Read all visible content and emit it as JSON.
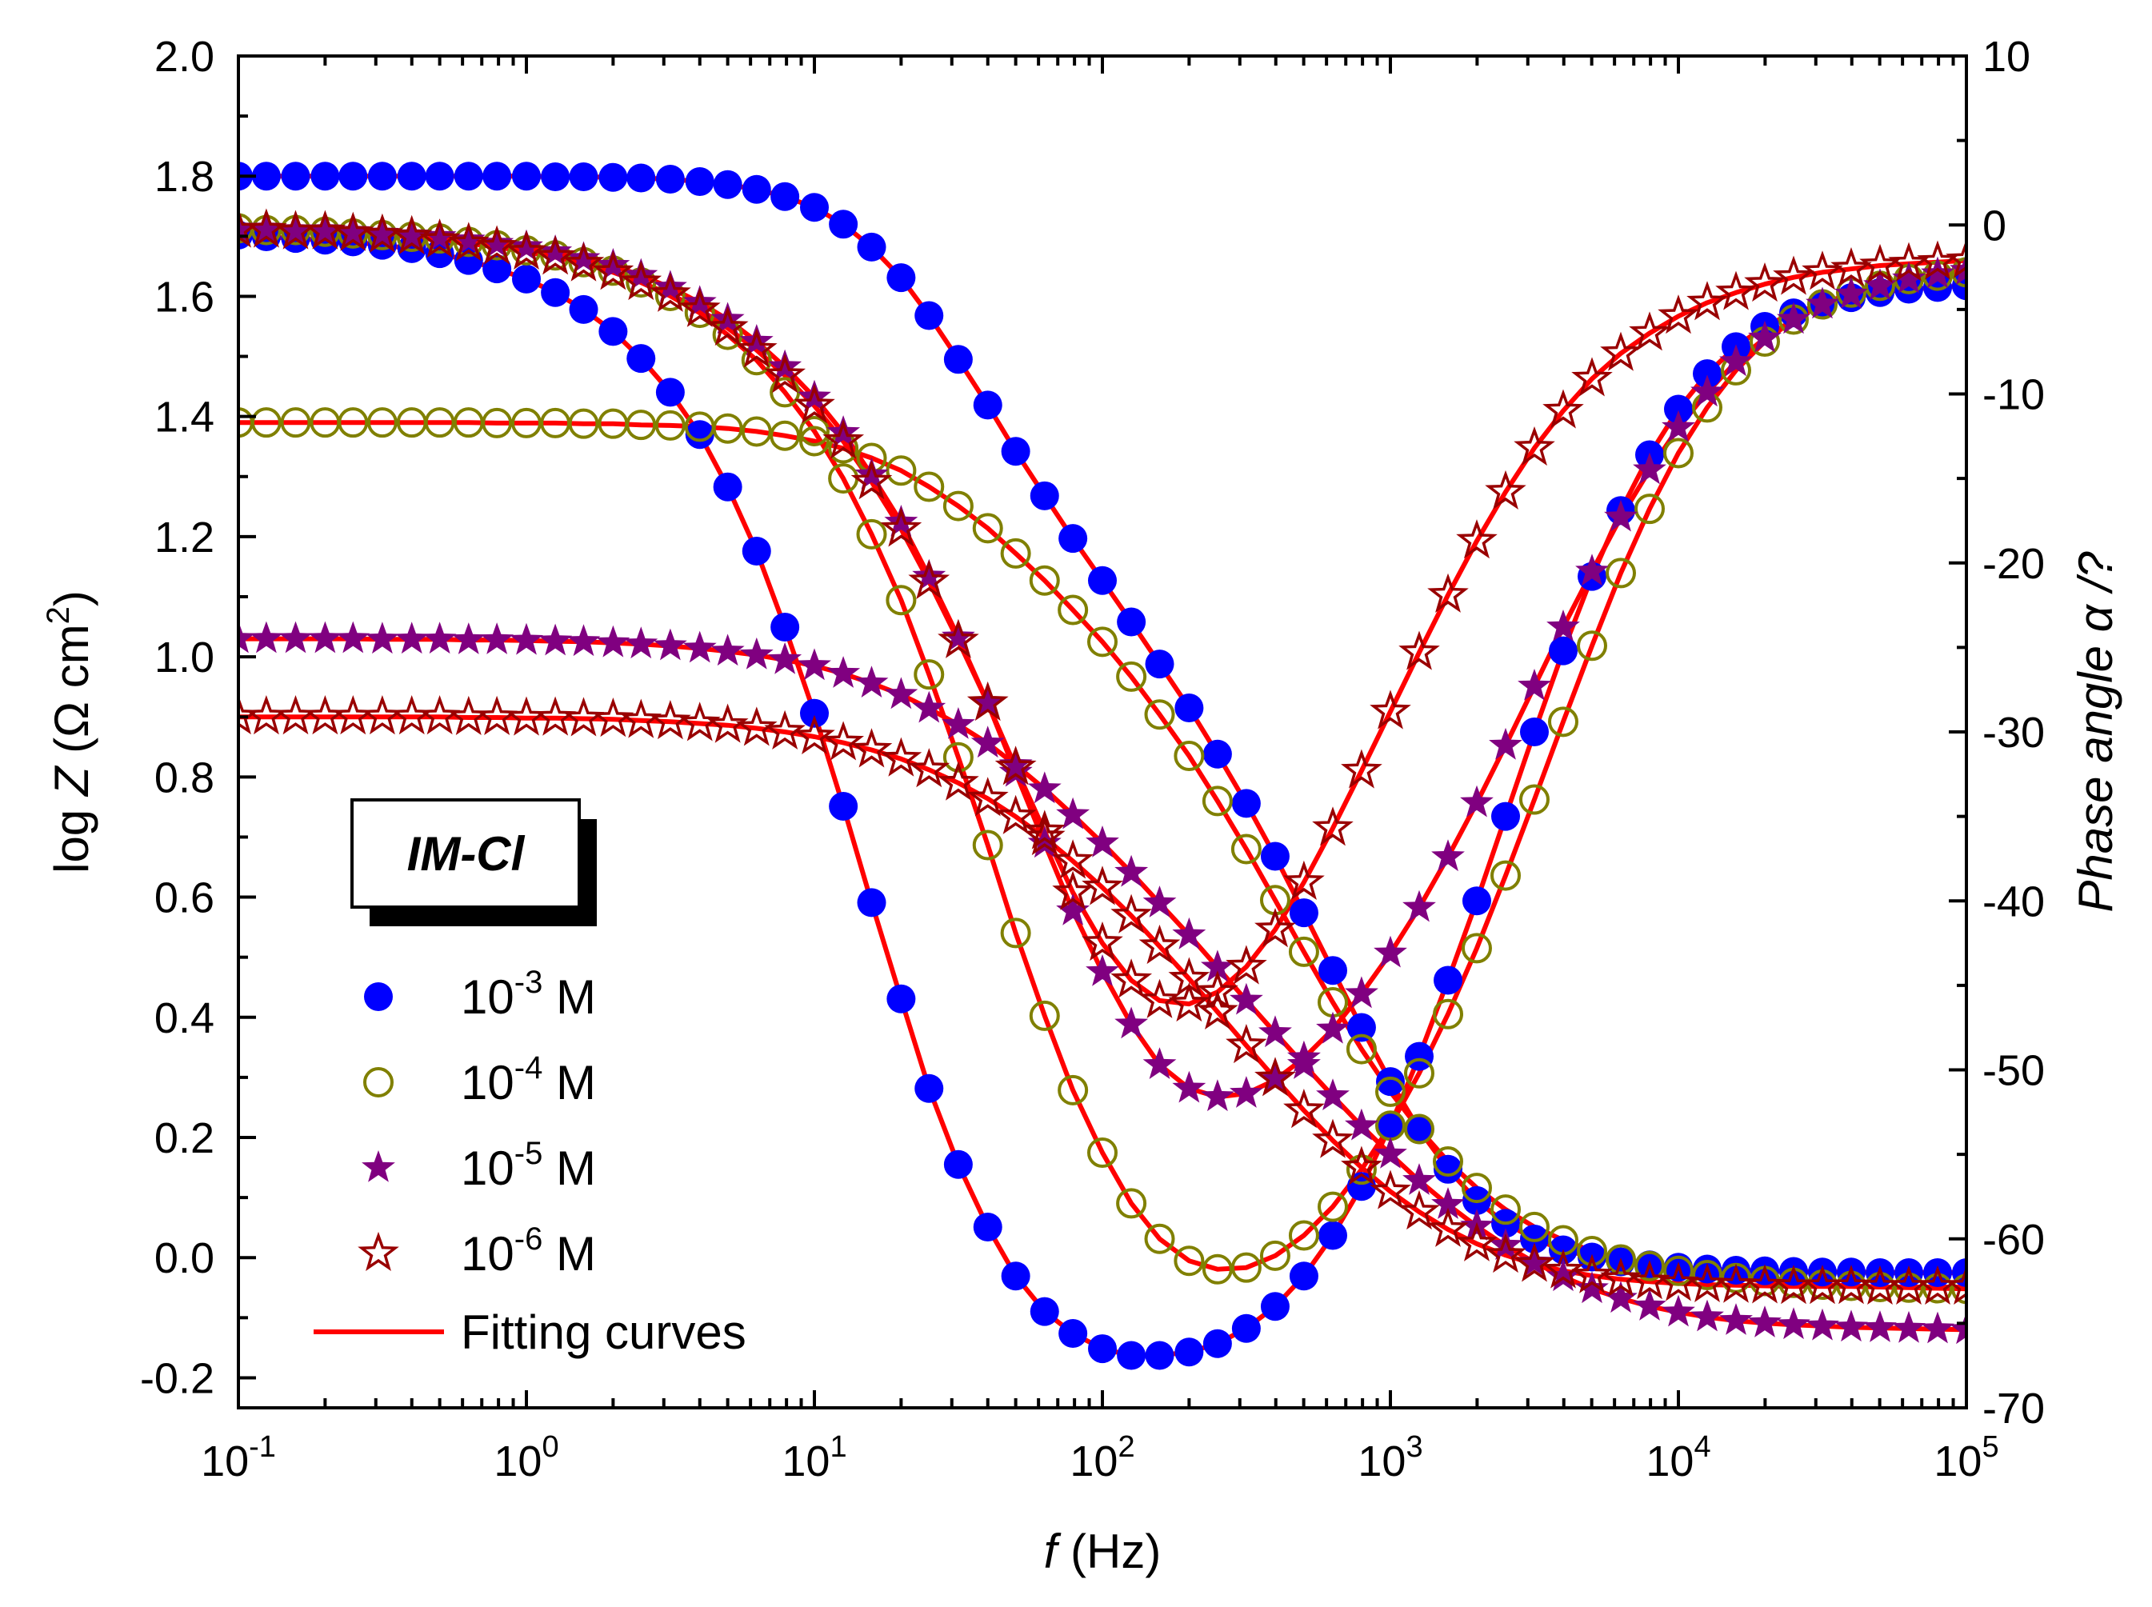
{
  "chart_data": {
    "type": "scatter",
    "x": [
      0.1,
      0.125,
      0.158,
      0.2,
      0.25,
      0.316,
      0.4,
      0.5,
      0.63,
      0.79,
      1.0,
      1.26,
      1.58,
      2.0,
      2.5,
      3.16,
      4.0,
      5.0,
      6.3,
      7.9,
      10,
      12.6,
      15.8,
      20,
      25,
      31.6,
      40,
      50,
      63,
      79,
      100,
      126,
      158,
      200,
      251,
      316,
      398,
      501,
      631,
      794,
      1000,
      1259,
      1585,
      1995,
      2512,
      3162,
      3981,
      5012,
      6310,
      7943,
      10000,
      12589,
      15849,
      19953,
      25119,
      31623,
      39811,
      50119,
      63096,
      79433,
      100000
    ],
    "xlabel_italic": "f",
    "xlabel_rest": " (Hz)",
    "xscale": "log",
    "xlim": [
      0.1,
      100000
    ],
    "x_ticks": [
      {
        "value": 0.1,
        "base": "10",
        "exp": "-1"
      },
      {
        "value": 1,
        "base": "10",
        "exp": "0"
      },
      {
        "value": 10,
        "base": "10",
        "exp": "1"
      },
      {
        "value": 100,
        "base": "10",
        "exp": "2"
      },
      {
        "value": 1000,
        "base": "10",
        "exp": "3"
      },
      {
        "value": 10000,
        "base": "10",
        "exp": "4"
      },
      {
        "value": 100000,
        "base": "10",
        "exp": "5"
      }
    ],
    "ylabel_left_pre": "log ",
    "ylabel_left_italic": "Z",
    "ylabel_left_post": " (Ω cm",
    "ylabel_left_sup": "2",
    "ylabel_left_close": ")",
    "ylim_left": [
      -0.25,
      2.0
    ],
    "y_ticks_left": [
      "-0.2",
      "0.0",
      "0.2",
      "0.4",
      "0.6",
      "0.8",
      "1.0",
      "1.2",
      "1.4",
      "1.6",
      "1.8",
      "2.0"
    ],
    "ylabel_right": "Phase angle α /?",
    "ylim_right": [
      -70,
      10
    ],
    "y_ticks_right": [
      "-70",
      "-60",
      "-50",
      "-40",
      "-30",
      "-20",
      "-10",
      "0",
      "10"
    ],
    "inset_label": "IM-Cl",
    "legend_position": "lower-left",
    "legend": [
      {
        "base": "10",
        "exp": "-3",
        "unit": " M",
        "marker": "filled-circle",
        "color": "#0000ff"
      },
      {
        "base": "10",
        "exp": "-4",
        "unit": " M",
        "marker": "open-circle",
        "color": "#808000"
      },
      {
        "base": "10",
        "exp": "-5",
        "unit": " M",
        "marker": "filled-star",
        "color": "#800080"
      },
      {
        "base": "10",
        "exp": "-6",
        "unit": " M",
        "marker": "open-star",
        "color": "#990000"
      },
      {
        "text": "Fitting curves",
        "marker": "line",
        "color": "#ff0000"
      }
    ],
    "fit_color": "#ff0000",
    "series": [
      {
        "name": "10-3 M logZ",
        "axis": "left",
        "marker": "filled-circle",
        "color": "#0000ff",
        "values": [
          1.8,
          1.8,
          1.8,
          1.8,
          1.8,
          1.8,
          1.8,
          1.8,
          1.8,
          1.8,
          1.8,
          1.799,
          1.799,
          1.798,
          1.797,
          1.795,
          1.791,
          1.786,
          1.778,
          1.766,
          1.748,
          1.72,
          1.682,
          1.631,
          1.568,
          1.495,
          1.419,
          1.342,
          1.268,
          1.197,
          1.127,
          1.058,
          0.988,
          0.915,
          0.838,
          0.756,
          0.668,
          0.574,
          0.478,
          0.383,
          0.293,
          0.213,
          0.147,
          0.095,
          0.057,
          0.031,
          0.013,
          0.001,
          -0.007,
          -0.012,
          -0.016,
          -0.019,
          -0.021,
          -0.022,
          -0.023,
          -0.024,
          -0.024,
          -0.025,
          -0.025,
          -0.025,
          -0.025
        ]
      },
      {
        "name": "10-3 M phase",
        "axis": "right",
        "marker": "filled-circle",
        "color": "#0000ff",
        "values": [
          -0.6,
          -0.7,
          -0.8,
          -0.9,
          -1.0,
          -1.2,
          -1.4,
          -1.7,
          -2.1,
          -2.6,
          -3.2,
          -4.0,
          -5.0,
          -6.3,
          -7.9,
          -9.9,
          -12.4,
          -15.5,
          -19.3,
          -23.8,
          -28.9,
          -34.4,
          -40.1,
          -45.8,
          -51.1,
          -55.6,
          -59.3,
          -62.2,
          -64.3,
          -65.6,
          -66.5,
          -66.9,
          -66.9,
          -66.7,
          -66.2,
          -65.3,
          -64.0,
          -62.2,
          -59.8,
          -56.9,
          -53.3,
          -49.2,
          -44.7,
          -40.0,
          -35.0,
          -30.0,
          -25.2,
          -20.8,
          -16.9,
          -13.6,
          -10.9,
          -8.8,
          -7.2,
          -6.0,
          -5.2,
          -4.7,
          -4.3,
          -4.0,
          -3.8,
          -3.7,
          -3.6
        ]
      },
      {
        "name": "10-4 M logZ",
        "axis": "left",
        "marker": "open-circle",
        "color": "#808000",
        "values": [
          1.39,
          1.39,
          1.39,
          1.39,
          1.39,
          1.39,
          1.39,
          1.39,
          1.39,
          1.389,
          1.389,
          1.389,
          1.388,
          1.388,
          1.386,
          1.385,
          1.383,
          1.38,
          1.375,
          1.368,
          1.359,
          1.347,
          1.331,
          1.31,
          1.283,
          1.251,
          1.214,
          1.172,
          1.127,
          1.078,
          1.025,
          0.967,
          0.904,
          0.835,
          0.76,
          0.68,
          0.595,
          0.509,
          0.425,
          0.347,
          0.276,
          0.214,
          0.16,
          0.116,
          0.08,
          0.051,
          0.029,
          0.011,
          -0.003,
          -0.014,
          -0.022,
          -0.029,
          -0.034,
          -0.039,
          -0.042,
          -0.045,
          -0.047,
          -0.049,
          -0.05,
          -0.051,
          -0.052
        ]
      },
      {
        "name": "10-4 M phase",
        "axis": "right",
        "marker": "open-circle",
        "color": "#808000",
        "values": [
          -0.2,
          -0.3,
          -0.3,
          -0.4,
          -0.5,
          -0.6,
          -0.7,
          -0.8,
          -1.0,
          -1.2,
          -1.5,
          -1.8,
          -2.2,
          -2.7,
          -3.4,
          -4.2,
          -5.2,
          -6.5,
          -8.0,
          -9.9,
          -12.2,
          -15.0,
          -18.3,
          -22.2,
          -26.6,
          -31.5,
          -36.7,
          -41.9,
          -46.8,
          -51.2,
          -54.9,
          -57.9,
          -60.0,
          -61.3,
          -61.8,
          -61.7,
          -61.0,
          -59.8,
          -58.1,
          -55.9,
          -53.3,
          -50.2,
          -46.7,
          -42.8,
          -38.5,
          -34.0,
          -29.4,
          -24.9,
          -20.6,
          -16.8,
          -13.5,
          -10.8,
          -8.6,
          -6.9,
          -5.6,
          -4.7,
          -4.0,
          -3.6,
          -3.2,
          -3.0,
          -2.8
        ]
      },
      {
        "name": "10-5 M logZ",
        "axis": "left",
        "marker": "filled-star",
        "color": "#800080",
        "values": [
          1.03,
          1.03,
          1.03,
          1.03,
          1.03,
          1.029,
          1.029,
          1.029,
          1.028,
          1.028,
          1.027,
          1.026,
          1.025,
          1.023,
          1.021,
          1.018,
          1.014,
          1.009,
          1.003,
          0.995,
          0.985,
          0.972,
          0.956,
          0.937,
          0.914,
          0.887,
          0.856,
          0.82,
          0.78,
          0.737,
          0.69,
          0.641,
          0.59,
          0.537,
          0.483,
          0.428,
          0.374,
          0.321,
          0.269,
          0.219,
          0.172,
          0.128,
          0.088,
          0.052,
          0.02,
          -0.008,
          -0.032,
          -0.052,
          -0.068,
          -0.081,
          -0.091,
          -0.099,
          -0.105,
          -0.109,
          -0.112,
          -0.114,
          -0.116,
          -0.117,
          -0.118,
          -0.119,
          -0.12
        ]
      },
      {
        "name": "10-5 M phase",
        "axis": "right",
        "marker": "filled-star",
        "color": "#800080",
        "values": [
          -0.2,
          -0.2,
          -0.3,
          -0.3,
          -0.4,
          -0.5,
          -0.6,
          -0.7,
          -0.9,
          -1.1,
          -1.3,
          -1.6,
          -2.0,
          -2.4,
          -3.0,
          -3.7,
          -4.6,
          -5.6,
          -6.9,
          -8.4,
          -10.2,
          -12.3,
          -14.8,
          -17.6,
          -20.8,
          -24.4,
          -28.3,
          -32.4,
          -36.6,
          -40.6,
          -44.2,
          -47.3,
          -49.7,
          -51.1,
          -51.6,
          -51.4,
          -50.6,
          -49.3,
          -47.6,
          -45.5,
          -43.1,
          -40.4,
          -37.4,
          -34.2,
          -30.8,
          -27.3,
          -23.8,
          -20.5,
          -17.3,
          -14.5,
          -12.0,
          -9.9,
          -8.1,
          -6.7,
          -5.6,
          -4.7,
          -4.1,
          -3.6,
          -3.2,
          -2.9,
          -2.7
        ]
      },
      {
        "name": "10-6 M logZ",
        "axis": "left",
        "marker": "open-star",
        "color": "#990000",
        "values": [
          0.9,
          0.9,
          0.9,
          0.9,
          0.9,
          0.9,
          0.9,
          0.9,
          0.899,
          0.899,
          0.898,
          0.898,
          0.897,
          0.896,
          0.894,
          0.892,
          0.889,
          0.886,
          0.881,
          0.875,
          0.867,
          0.857,
          0.845,
          0.83,
          0.812,
          0.79,
          0.764,
          0.734,
          0.699,
          0.66,
          0.616,
          0.569,
          0.518,
          0.464,
          0.409,
          0.353,
          0.298,
          0.245,
          0.195,
          0.15,
          0.11,
          0.076,
          0.047,
          0.023,
          0.004,
          -0.011,
          -0.022,
          -0.03,
          -0.036,
          -0.04,
          -0.043,
          -0.045,
          -0.046,
          -0.047,
          -0.048,
          -0.048,
          -0.048,
          -0.049,
          -0.049,
          -0.049,
          -0.049
        ]
      },
      {
        "name": "10-6 M phase",
        "axis": "right",
        "marker": "open-star",
        "color": "#990000",
        "values": [
          -0.3,
          -0.3,
          -0.4,
          -0.4,
          -0.5,
          -0.6,
          -0.7,
          -0.9,
          -1.1,
          -1.3,
          -1.6,
          -1.9,
          -2.3,
          -2.8,
          -3.4,
          -4.1,
          -5.0,
          -6.1,
          -7.4,
          -8.9,
          -10.7,
          -12.8,
          -15.2,
          -18.0,
          -21.1,
          -24.6,
          -28.3,
          -32.1,
          -35.9,
          -39.5,
          -42.5,
          -44.7,
          -45.9,
          -46.1,
          -45.4,
          -43.9,
          -41.7,
          -38.9,
          -35.7,
          -32.3,
          -28.8,
          -25.3,
          -21.9,
          -18.7,
          -15.8,
          -13.2,
          -11.0,
          -9.1,
          -7.6,
          -6.4,
          -5.4,
          -4.6,
          -4.0,
          -3.5,
          -3.1,
          -2.8,
          -2.6,
          -2.4,
          -2.3,
          -2.2,
          -2.1
        ]
      }
    ]
  }
}
